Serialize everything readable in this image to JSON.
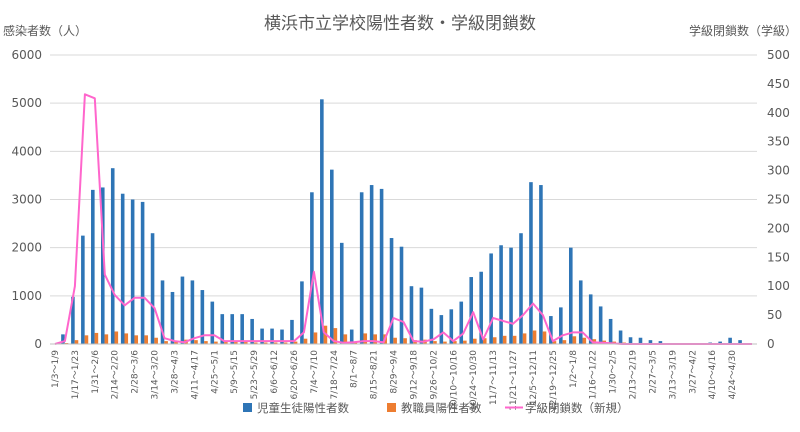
{
  "chart_data": {
    "type": "bar",
    "title": "横浜市立学校陽性者数・学級閉鎖数",
    "ylabel_left": "感染者数（人）",
    "ylabel_right": "学級閉鎖数（学級）",
    "ylim_left": [
      0,
      6000
    ],
    "ylim_right": [
      0,
      500
    ],
    "yticks_left": [
      "0",
      "1000",
      "2000",
      "3000",
      "4000",
      "5000",
      "6000"
    ],
    "yticks_right": [
      "0",
      "50",
      "100",
      "150",
      "200",
      "250",
      "300",
      "350",
      "400",
      "450",
      "500"
    ],
    "xtick_labels": [
      "1/3～1/9",
      "1/17～1/23",
      "1/31～2/6",
      "2/14～2/20",
      "2/28～3/6",
      "3/14～3/20",
      "3/28～4/3",
      "4/11～4/17",
      "4/25～5/1",
      "5/9～5/15",
      "5/23～5/29",
      "6/6～6/12",
      "6/20～6/26",
      "7/4～7/10",
      "7/18～7/24",
      "8/1～8/7",
      "8/15～8/21",
      "8/29～9/4",
      "9/12～9/18",
      "9/26～10/2",
      "10/10～10/16",
      "10/24～10/30",
      "11/7～11/13",
      "11/21～11/27",
      "12/5～12/11",
      "12/19～12/25",
      "1/2～1/8",
      "1/16～1/22",
      "1/30～2/5",
      "2/13～2/19",
      "2/27～3/5",
      "3/13～3/19",
      "3/27～4/2",
      "4/10～4/16",
      "4/24～4/30"
    ],
    "grid": true,
    "legend_position": "bottom",
    "series": [
      {
        "name": "児童生徒陽性者数",
        "type": "bar",
        "axis": "left",
        "color": "#2E75B6",
        "values": [
          0,
          200,
          980,
          2250,
          3200,
          3250,
          3650,
          3120,
          3000,
          2950,
          2300,
          1320,
          1080,
          1400,
          1320,
          1120,
          880,
          620,
          620,
          620,
          520,
          320,
          320,
          300,
          500,
          1300,
          3150,
          5080,
          3620,
          2100,
          300,
          3150,
          3300,
          3220,
          2200,
          2020,
          1200,
          1170,
          730,
          600,
          720,
          880,
          1390,
          1500,
          1880,
          2050,
          2000,
          2300,
          3360,
          3300,
          580,
          760,
          2000,
          1320,
          1030,
          780,
          520,
          280,
          140,
          130,
          80,
          60,
          0,
          0,
          0,
          20,
          30,
          50,
          130,
          80,
          20
        ]
      },
      {
        "name": "教職員陽性者数",
        "type": "bar",
        "axis": "left",
        "color": "#ED7D31",
        "values": [
          0,
          20,
          80,
          180,
          230,
          200,
          260,
          220,
          180,
          180,
          130,
          60,
          60,
          90,
          80,
          60,
          50,
          40,
          40,
          40,
          30,
          30,
          30,
          30,
          50,
          110,
          240,
          380,
          330,
          200,
          40,
          220,
          200,
          200,
          130,
          120,
          80,
          90,
          60,
          50,
          60,
          70,
          110,
          120,
          140,
          170,
          170,
          220,
          280,
          260,
          60,
          80,
          160,
          130,
          100,
          70,
          50,
          30,
          20,
          20,
          10,
          10,
          0,
          0,
          0,
          0,
          0,
          10,
          10,
          10,
          0
        ]
      },
      {
        "name": "学級閉鎖数（新規）",
        "type": "line",
        "axis": "right",
        "color": "#FF66CC",
        "values": [
          0,
          5,
          100,
          432,
          425,
          120,
          85,
          67,
          80,
          80,
          62,
          10,
          5,
          3,
          10,
          15,
          15,
          5,
          5,
          5,
          5,
          5,
          5,
          5,
          5,
          20,
          125,
          20,
          5,
          2,
          3,
          5,
          5,
          3,
          45,
          38,
          5,
          4,
          8,
          20,
          5,
          18,
          55,
          8,
          45,
          40,
          35,
          50,
          70,
          50,
          5,
          15,
          20,
          20,
          3,
          2,
          1,
          0,
          0,
          0,
          0,
          0,
          0,
          0,
          0,
          0,
          0,
          0,
          0,
          0,
          0
        ]
      }
    ]
  }
}
